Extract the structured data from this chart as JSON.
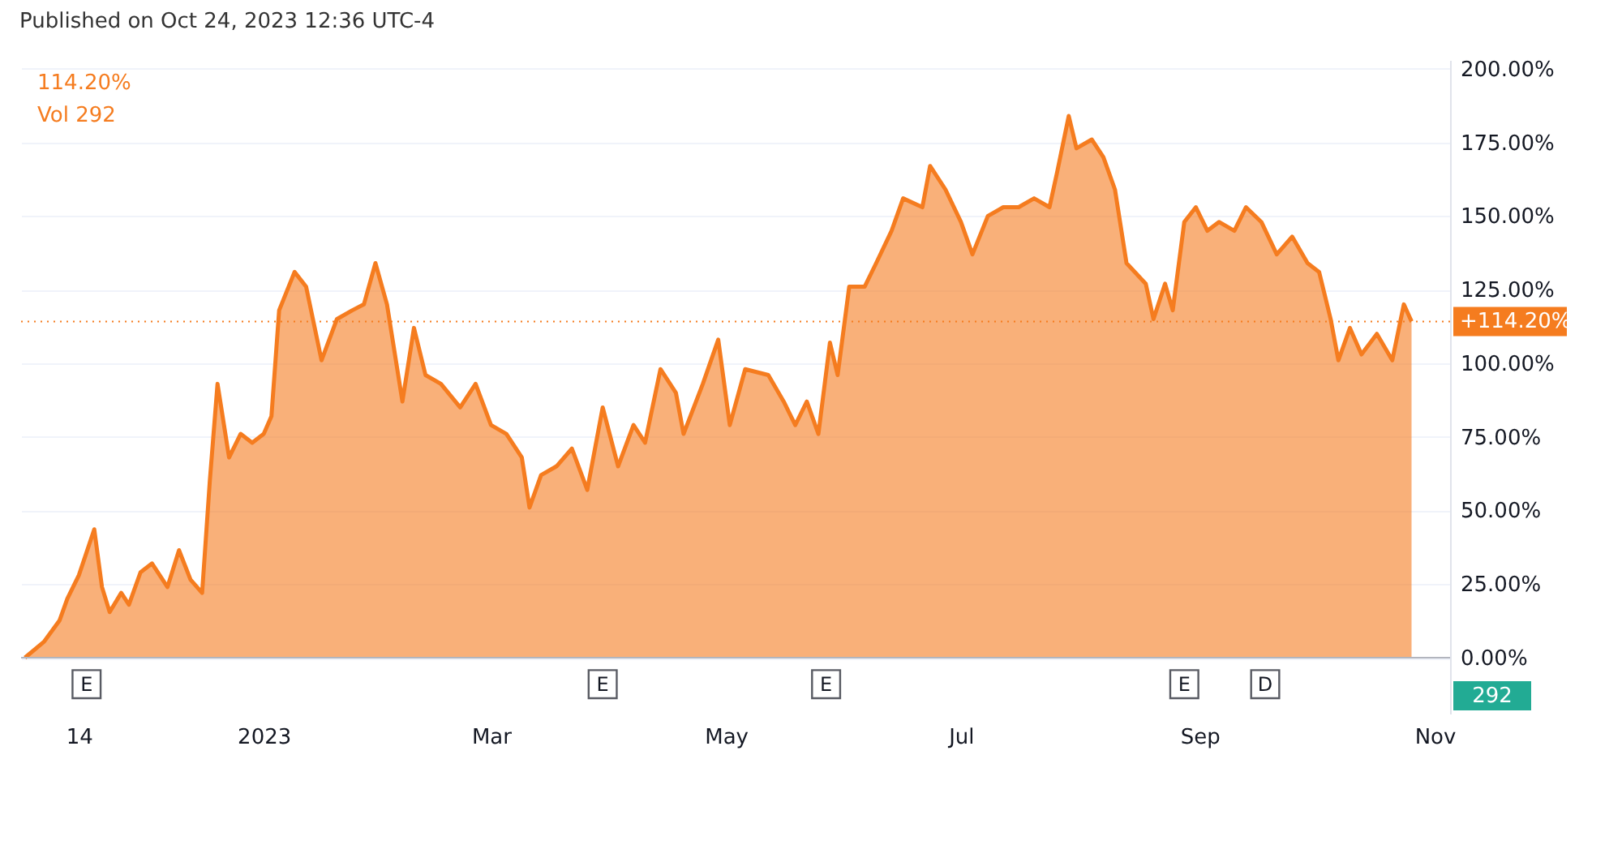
{
  "chart_data": {
    "type": "area",
    "annotations": [
      "Published on Oct 24, 2023 12:36 UTC-4",
      "114.20%",
      "Vol 292",
      "292",
      {
        "text": "E",
        "x": "2022-11-16",
        "y": -9
      },
      {
        "text": "E",
        "x": "2023-03-30",
        "y": -9
      },
      {
        "text": "E",
        "x": "2023-05-27",
        "y": -9
      },
      {
        "text": "E",
        "x": "2023-08-28",
        "y": -9
      },
      {
        "text": "D",
        "x": "2023-09-18",
        "y": -9
      }
    ],
    "x": [
      "2022-10-31",
      "2022-11-05",
      "2022-11-09",
      "2022-11-11",
      "2022-11-14",
      "2022-11-18",
      "2022-11-20",
      "2022-11-22",
      "2022-11-25",
      "2022-11-27",
      "2022-11-30",
      "2022-12-03",
      "2022-12-07",
      "2022-12-10",
      "2022-12-13",
      "2022-12-16",
      "2022-12-18",
      "2022-12-20",
      "2022-12-23",
      "2022-12-26",
      "2022-12-29",
      "2023-01-01",
      "2023-01-03",
      "2023-01-05",
      "2023-01-09",
      "2023-01-12",
      "2023-01-16",
      "2023-01-20",
      "2023-01-24",
      "2023-01-27",
      "2023-01-30",
      "2023-02-02",
      "2023-02-06",
      "2023-02-09",
      "2023-02-12",
      "2023-02-16",
      "2023-02-21",
      "2023-02-25",
      "2023-03-01",
      "2023-03-05",
      "2023-03-09",
      "2023-03-11",
      "2023-03-14",
      "2023-03-18",
      "2023-03-22",
      "2023-03-26",
      "2023-03-30",
      "2023-04-03",
      "2023-04-07",
      "2023-04-10",
      "2023-04-14",
      "2023-04-18",
      "2023-04-20",
      "2023-04-25",
      "2023-04-29",
      "2023-05-02",
      "2023-05-06",
      "2023-05-12",
      "2023-05-16",
      "2023-05-19",
      "2023-05-22",
      "2023-05-25",
      "2023-05-28",
      "2023-05-30",
      "2023-06-02",
      "2023-06-06",
      "2023-06-09",
      "2023-06-13",
      "2023-06-16",
      "2023-06-21",
      "2023-06-23",
      "2023-06-27",
      "2023-07-01",
      "2023-07-04",
      "2023-07-08",
      "2023-07-12",
      "2023-07-16",
      "2023-07-20",
      "2023-07-24",
      "2023-07-26",
      "2023-07-29",
      "2023-07-31",
      "2023-08-04",
      "2023-08-07",
      "2023-08-10",
      "2023-08-13",
      "2023-08-18",
      "2023-08-20",
      "2023-08-23",
      "2023-08-25",
      "2023-08-28",
      "2023-08-31",
      "2023-09-03",
      "2023-09-06",
      "2023-09-10",
      "2023-09-13",
      "2023-09-17",
      "2023-09-21",
      "2023-09-25",
      "2023-09-29",
      "2023-10-02",
      "2023-10-05",
      "2023-10-07",
      "2023-10-10",
      "2023-10-13",
      "2023-10-17",
      "2023-10-21",
      "2023-10-24",
      "2023-10-26"
    ],
    "series": [
      {
        "color": "#f57c1f",
        "values": [
          0,
          5.5,
          12.7,
          20,
          28,
          43.6,
          24,
          15.5,
          22,
          18,
          29,
          32,
          24,
          36.5,
          26.5,
          22,
          60,
          93,
          68,
          76,
          73,
          76,
          82,
          118,
          131,
          126,
          101,
          115,
          118,
          120,
          134,
          120,
          87,
          112,
          96,
          93,
          85,
          93,
          79,
          76,
          68,
          51,
          62,
          65,
          71,
          57,
          85,
          65,
          79,
          73,
          98,
          90,
          76,
          93,
          108,
          79,
          98,
          96,
          87,
          79,
          87,
          76,
          107,
          96,
          126,
          126,
          134,
          145,
          156,
          153,
          167,
          159,
          148,
          137,
          150,
          153,
          153,
          156,
          153,
          165,
          184,
          173,
          176,
          170,
          159,
          134,
          127,
          115,
          127,
          118,
          148,
          153,
          145,
          148,
          145,
          153,
          148,
          137,
          143,
          134,
          131,
          115,
          101,
          112,
          103,
          110,
          101,
          120,
          114.2
        ]
      }
    ],
    "xlim": [
      "2022-10-30",
      "2023-11-05"
    ],
    "xticks": [
      {
        "value": "2022-11-14",
        "label": "14"
      },
      {
        "value": "2023-01-01",
        "label": "2023"
      },
      {
        "value": "2023-03-01",
        "label": "Mar"
      },
      {
        "value": "2023-05-01",
        "label": "May"
      },
      {
        "value": "2023-07-01",
        "label": "Jul"
      },
      {
        "value": "2023-09-01",
        "label": "Sep"
      },
      {
        "value": "2023-11-01",
        "label": "Nov"
      }
    ],
    "ylim": [
      -19,
      203
    ],
    "yticks": [
      {
        "value": 0,
        "label": "0.00%"
      },
      {
        "value": 25,
        "label": "25.00%"
      },
      {
        "value": 50,
        "label": "50.00%"
      },
      {
        "value": 75,
        "label": "75.00%"
      },
      {
        "value": 100,
        "label": "100.00%"
      },
      {
        "value": 125,
        "label": "125.00%"
      },
      {
        "value": 150,
        "label": "150.00%"
      },
      {
        "value": 175,
        "label": "175.00%"
      },
      {
        "value": 200,
        "label": "200.00%"
      }
    ],
    "ref_lines": [
      {
        "axis": "y",
        "value": 114.2,
        "label": "+114.20%",
        "color": "#f57c1f",
        "line_style": "dotted"
      },
      {
        "axis": "y",
        "value": 0,
        "color": "#b2b5be",
        "line_style": "solid"
      }
    ],
    "grid": "y"
  }
}
